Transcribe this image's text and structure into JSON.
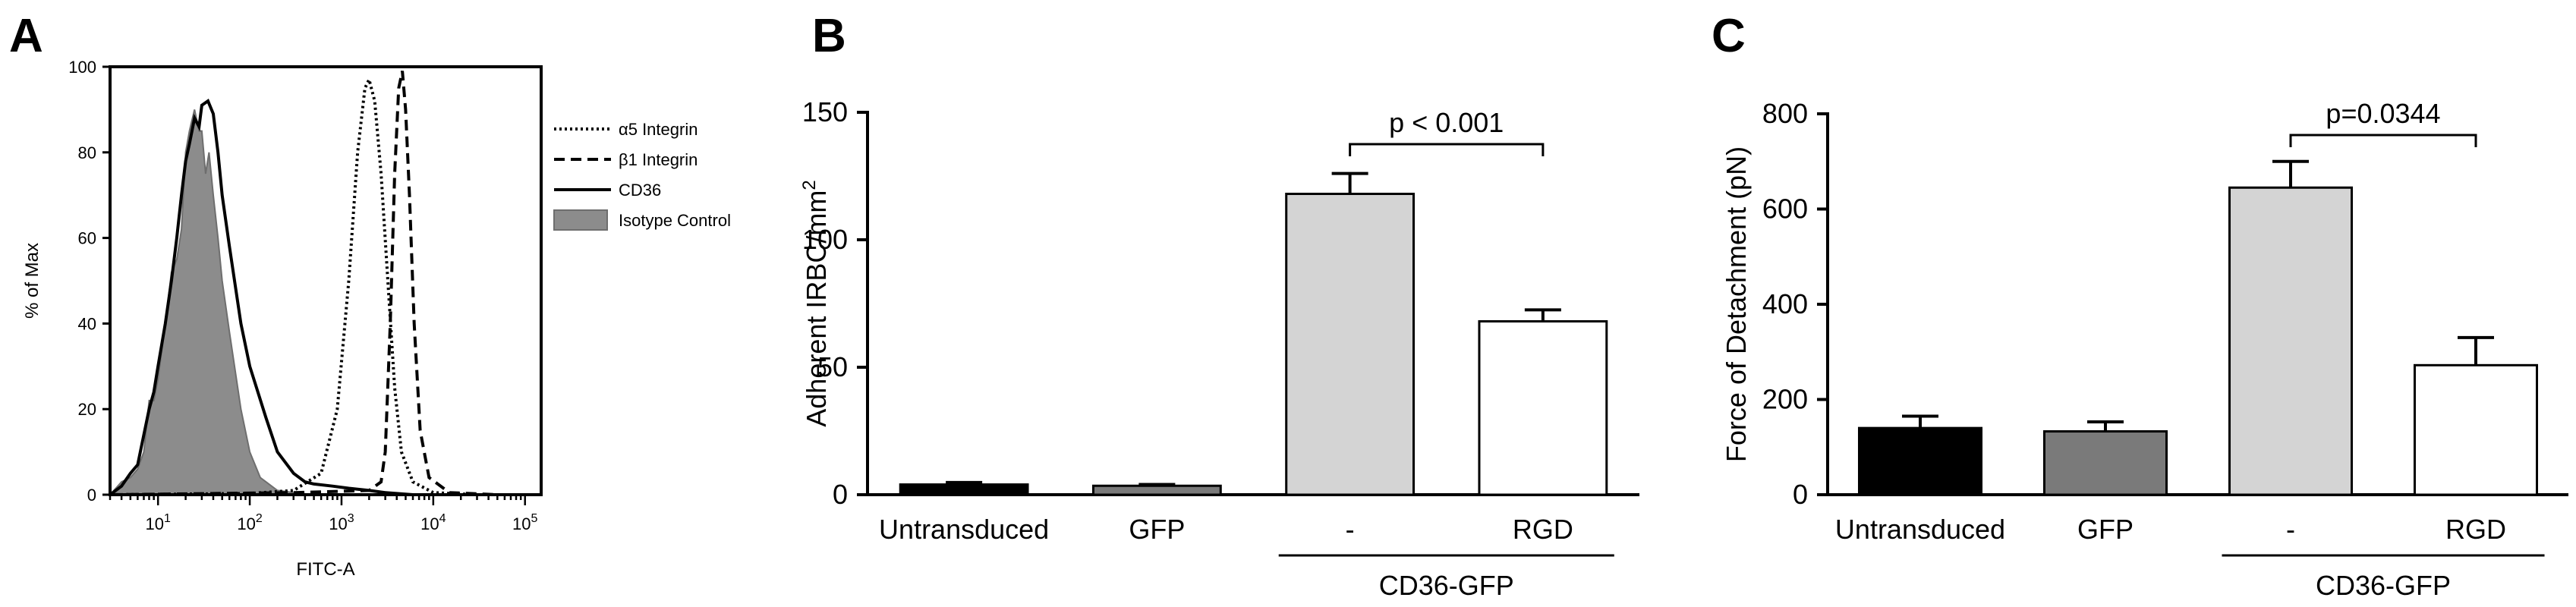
{
  "panels": {
    "A": {
      "letter": "A"
    },
    "B": {
      "letter": "B"
    },
    "C": {
      "letter": "C"
    }
  },
  "chart_data": [
    {
      "panel": "A",
      "type": "line",
      "title": "",
      "xlabel": "FITC-A",
      "ylabel": "% of Max",
      "x_scale": "log",
      "xlim": [
        3,
        150000
      ],
      "ylim": [
        0,
        100
      ],
      "yticks": [
        "0",
        "20",
        "40",
        "60",
        "80",
        "100"
      ],
      "xticks": [
        {
          "base": "10",
          "exp": "1",
          "value": 10
        },
        {
          "base": "10",
          "exp": "2",
          "value": 100
        },
        {
          "base": "10",
          "exp": "3",
          "value": 1000
        },
        {
          "base": "10",
          "exp": "4",
          "value": 10000
        },
        {
          "base": "10",
          "exp": "5",
          "value": 100000
        }
      ],
      "legend_position": "right",
      "series": [
        {
          "name": "α5 Integrin",
          "style": "dotted",
          "color": "#000000",
          "points": [
            [
              3,
              0
            ],
            [
              30,
              0.2
            ],
            [
              100,
              0.3
            ],
            [
              300,
              1
            ],
            [
              600,
              5
            ],
            [
              900,
              20
            ],
            [
              1200,
              50
            ],
            [
              1500,
              80
            ],
            [
              1800,
              95
            ],
            [
              2000,
              97
            ],
            [
              2300,
              92
            ],
            [
              2700,
              75
            ],
            [
              3200,
              50
            ],
            [
              3800,
              25
            ],
            [
              4500,
              10
            ],
            [
              6000,
              3
            ],
            [
              10000,
              0.5
            ],
            [
              30000,
              0
            ]
          ]
        },
        {
          "name": "β1 Integrin",
          "style": "dashed",
          "color": "#000000",
          "points": [
            [
              3,
              0
            ],
            [
              300,
              0.5
            ],
            [
              1000,
              0.8
            ],
            [
              2000,
              1
            ],
            [
              2700,
              3
            ],
            [
              3000,
              10
            ],
            [
              3400,
              40
            ],
            [
              3800,
              75
            ],
            [
              4200,
              95
            ],
            [
              4600,
              99
            ],
            [
              5000,
              90
            ],
            [
              5500,
              70
            ],
            [
              6200,
              40
            ],
            [
              7200,
              15
            ],
            [
              9000,
              4
            ],
            [
              15000,
              0.5
            ],
            [
              50000,
              0
            ]
          ]
        },
        {
          "name": "CD36",
          "style": "solid",
          "color": "#000000",
          "points": [
            [
              3,
              0
            ],
            [
              4,
              2
            ],
            [
              5,
              5
            ],
            [
              6,
              7
            ],
            [
              7,
              14
            ],
            [
              8,
              20
            ],
            [
              9,
              24
            ],
            [
              10,
              30
            ],
            [
              12,
              40
            ],
            [
              14,
              50
            ],
            [
              16,
              60
            ],
            [
              18,
              70
            ],
            [
              20,
              78
            ],
            [
              22,
              82
            ],
            [
              25,
              88
            ],
            [
              28,
              86
            ],
            [
              30,
              91
            ],
            [
              35,
              92
            ],
            [
              40,
              89
            ],
            [
              45,
              80
            ],
            [
              50,
              70
            ],
            [
              60,
              58
            ],
            [
              80,
              40
            ],
            [
              100,
              30
            ],
            [
              150,
              18
            ],
            [
              200,
              10
            ],
            [
              300,
              5
            ],
            [
              400,
              3
            ],
            [
              500,
              2.5
            ],
            [
              800,
              2
            ],
            [
              1200,
              1.5
            ],
            [
              2000,
              1
            ],
            [
              3000,
              0.5
            ],
            [
              6000,
              0
            ]
          ]
        },
        {
          "name": "Isotype Control",
          "style": "filled",
          "color": "#8c8c8c",
          "points": [
            [
              3,
              0
            ],
            [
              4,
              3
            ],
            [
              5,
              4
            ],
            [
              6,
              6
            ],
            [
              7,
              10
            ],
            [
              8,
              22
            ],
            [
              9,
              22
            ],
            [
              10,
              27
            ],
            [
              12,
              40
            ],
            [
              14,
              52
            ],
            [
              16,
              55
            ],
            [
              18,
              62
            ],
            [
              20,
              80
            ],
            [
              22,
              85
            ],
            [
              25,
              90
            ],
            [
              28,
              85
            ],
            [
              30,
              85
            ],
            [
              33,
              75
            ],
            [
              36,
              80
            ],
            [
              40,
              70
            ],
            [
              45,
              60
            ],
            [
              50,
              50
            ],
            [
              60,
              38
            ],
            [
              80,
              20
            ],
            [
              100,
              10
            ],
            [
              130,
              4
            ],
            [
              200,
              1
            ],
            [
              300,
              0.5
            ],
            [
              500,
              0
            ]
          ]
        }
      ]
    },
    {
      "panel": "B",
      "type": "bar",
      "title": "",
      "xlabel": "",
      "ylabel": "Adherent IRBC/mm",
      "ylabel_superscript": "2",
      "ylim": [
        0,
        150
      ],
      "yticks": [
        0,
        50,
        100,
        150
      ],
      "categories": [
        "Untransduced",
        "GFP",
        "-",
        "RGD"
      ],
      "group_label": "CD36-GFP",
      "values": [
        4,
        3.5,
        118,
        68
      ],
      "errors": [
        0.8,
        0.5,
        8,
        4.5
      ],
      "colors": [
        "#000000",
        "#7a7a7a",
        "#d4d4d4",
        "#ffffff"
      ],
      "annotation": "p < 0.001"
    },
    {
      "panel": "C",
      "type": "bar",
      "title": "",
      "xlabel": "",
      "ylabel": "Force of Detachment (pN)",
      "ylim": [
        0,
        800
      ],
      "yticks": [
        0,
        200,
        400,
        600,
        800
      ],
      "categories": [
        "Untransduced",
        "GFP",
        "-",
        "RGD"
      ],
      "group_label": "CD36-GFP",
      "values": [
        140,
        133,
        645,
        272
      ],
      "errors": [
        25,
        20,
        55,
        58
      ],
      "colors": [
        "#000000",
        "#7a7a7a",
        "#d4d4d4",
        "#ffffff"
      ],
      "annotation": "p=0.0344"
    }
  ]
}
